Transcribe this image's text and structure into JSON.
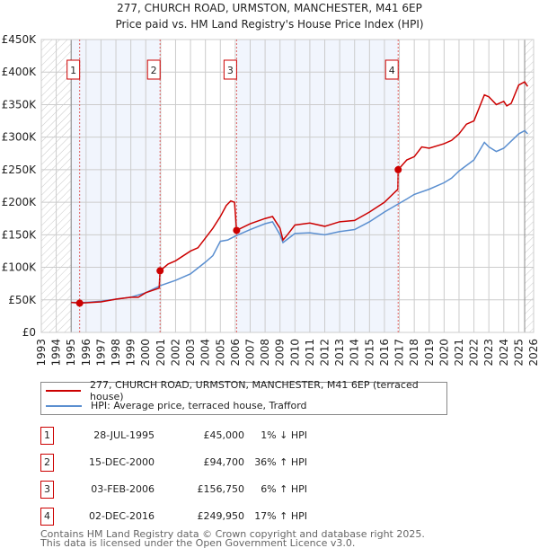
{
  "chart_data": {
    "type": "line",
    "title": "277, CHURCH ROAD, URMSTON, MANCHESTER, M41 6EP",
    "subtitle": "Price paid vs. HM Land Registry's House Price Index (HPI)",
    "xlim": [
      1993,
      2026
    ],
    "ylim": [
      0,
      450000
    ],
    "y_ticks": [
      {
        "v": 0,
        "label": "£0"
      },
      {
        "v": 50000,
        "label": "£50K"
      },
      {
        "v": 100000,
        "label": "£100K"
      },
      {
        "v": 150000,
        "label": "£150K"
      },
      {
        "v": 200000,
        "label": "£200K"
      },
      {
        "v": 250000,
        "label": "£250K"
      },
      {
        "v": 300000,
        "label": "£300K"
      },
      {
        "v": 350000,
        "label": "£350K"
      },
      {
        "v": 400000,
        "label": "£400K"
      },
      {
        "v": 450000,
        "label": "£450K"
      }
    ],
    "x_ticks": [
      "1993",
      "1994",
      "1995",
      "1996",
      "1997",
      "1998",
      "1999",
      "2000",
      "2001",
      "2002",
      "2003",
      "2004",
      "2005",
      "2006",
      "2007",
      "2008",
      "2009",
      "2010",
      "2011",
      "2012",
      "2013",
      "2014",
      "2015",
      "2016",
      "2017",
      "2018",
      "2019",
      "2020",
      "2021",
      "2022",
      "2023",
      "2024",
      "2025",
      "2026"
    ],
    "grid": true,
    "hatched_ranges": [
      [
        1993,
        1995
      ],
      [
        2025.4,
        2026
      ]
    ],
    "shaded_ranges": [
      [
        1995,
        2000.96
      ],
      [
        2006.09,
        2016.92
      ]
    ],
    "series": [
      {
        "name": "277, CHURCH ROAD, URMSTON, MANCHESTER, M41 6EP (terraced house)",
        "color": "#cc0000",
        "x": [
          1995,
          1995.57,
          1996,
          1997,
          1998,
          1999,
          1999.5,
          2000,
          2000.9,
          2000.96,
          2001.5,
          2002,
          2003,
          2003.5,
          2004,
          2004.5,
          2005,
          2005.4,
          2005.7,
          2005.95,
          2006.09,
          2007,
          2008,
          2008.5,
          2009,
          2009.2,
          2009.5,
          2010,
          2011,
          2012,
          2013,
          2014,
          2015,
          2016,
          2016.9,
          2016.92,
          2017.5,
          2018,
          2018.5,
          2019,
          2020,
          2020.5,
          2021,
          2021.5,
          2022,
          2022.7,
          2023,
          2023.5,
          2024,
          2024.2,
          2024.5,
          2025,
          2025.4,
          2025.6
        ],
        "y": [
          46000,
          45000,
          45500,
          47000,
          51000,
          54000,
          54000,
          61000,
          68000,
          94700,
          105000,
          110000,
          125000,
          130000,
          145000,
          160000,
          178000,
          195000,
          202000,
          200000,
          156750,
          167000,
          175000,
          178000,
          160000,
          142000,
          150000,
          165000,
          168000,
          163000,
          170000,
          172000,
          185000,
          200000,
          220000,
          249950,
          265000,
          270000,
          285000,
          283000,
          290000,
          295000,
          305000,
          320000,
          325000,
          365000,
          362000,
          350000,
          355000,
          348000,
          352000,
          380000,
          385000,
          378000
        ]
      },
      {
        "name": "HPI: Average price, terraced house, Trafford",
        "color": "#5b8fd0",
        "x": [
          1995,
          1996,
          1997,
          1998,
          1999,
          2000,
          2001,
          2002,
          2003,
          2004,
          2004.5,
          2005,
          2005.5,
          2006,
          2007,
          2008,
          2008.5,
          2009,
          2009.2,
          2010,
          2011,
          2012,
          2013,
          2014,
          2015,
          2016,
          2016.9,
          2017.5,
          2018,
          2019,
          2020,
          2020.5,
          2021,
          2022,
          2022.7,
          2023,
          2023.5,
          2024,
          2025,
          2025.4,
          2025.6
        ],
        "y": [
          46000,
          46000,
          48000,
          51000,
          54000,
          61000,
          72000,
          80000,
          90000,
          108000,
          118000,
          140000,
          142000,
          148000,
          158000,
          167000,
          170000,
          150000,
          138000,
          152000,
          153000,
          150000,
          155000,
          158000,
          170000,
          185000,
          197000,
          205000,
          212000,
          220000,
          230000,
          237000,
          248000,
          265000,
          292000,
          285000,
          278000,
          283000,
          305000,
          310000,
          305000
        ]
      }
    ],
    "sales": [
      {
        "id": "1",
        "x": 1995.57,
        "y": 45000,
        "date": "28-JUL-1995",
        "price": "£45,000",
        "hpi": "1% ↓ HPI"
      },
      {
        "id": "2",
        "x": 2000.96,
        "y": 94700,
        "date": "15-DEC-2000",
        "price": "£94,700",
        "hpi": "36% ↑ HPI"
      },
      {
        "id": "3",
        "x": 2006.09,
        "y": 156750,
        "date": "03-FEB-2006",
        "price": "£156,750",
        "hpi": "6% ↑ HPI"
      },
      {
        "id": "4",
        "x": 2016.92,
        "y": 249950,
        "date": "02-DEC-2016",
        "price": "£249,950",
        "hpi": "17% ↑ HPI"
      }
    ]
  },
  "legend": {
    "property": "277, CHURCH ROAD, URMSTON, MANCHESTER, M41 6EP (terraced house)",
    "hpi": "HPI: Average price, terraced house, Trafford"
  },
  "footer": {
    "line1": "Contains HM Land Registry data © Crown copyright and database right 2025.",
    "line2": "This data is licensed under the Open Government Licence v3.0."
  }
}
